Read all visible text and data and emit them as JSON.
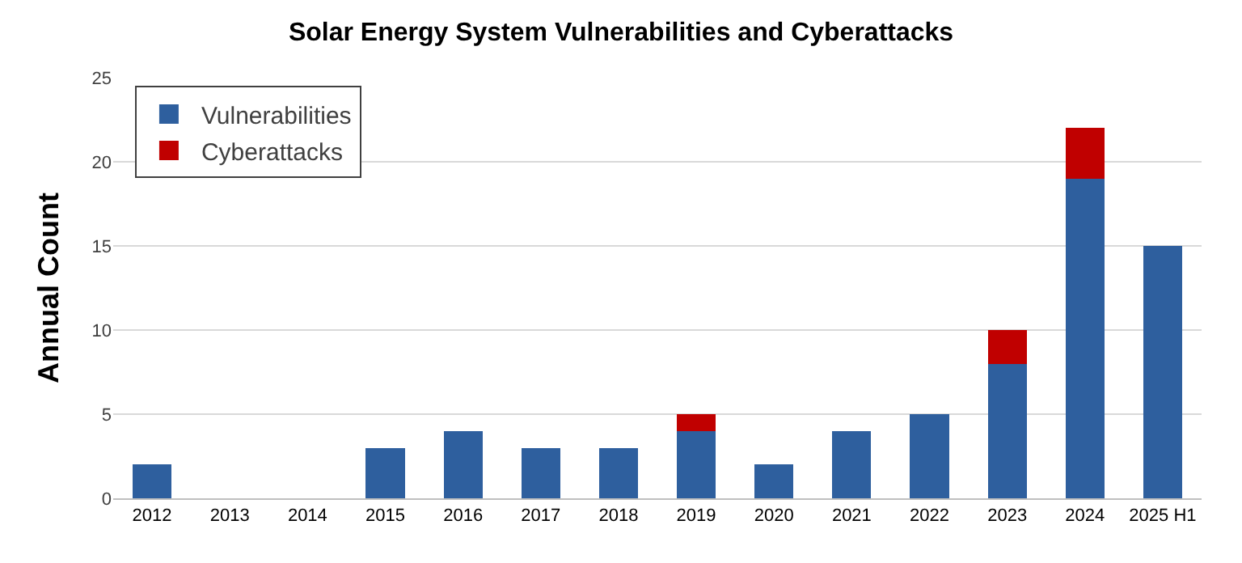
{
  "chart_data": {
    "type": "bar",
    "title": "Solar Energy System Vulnerabilities and Cyberattacks",
    "ylabel": "Annual Count",
    "categories": [
      "2012",
      "2013",
      "2014",
      "2015",
      "2016",
      "2017",
      "2018",
      "2019",
      "2020",
      "2021",
      "2022",
      "2023",
      "2024",
      "2025 H1"
    ],
    "series": [
      {
        "name": "Vulnerabilities",
        "color": "#2e5f9e",
        "values": [
          2,
          0,
          0,
          3,
          4,
          3,
          3,
          4,
          2,
          4,
          5,
          8,
          19,
          15
        ]
      },
      {
        "name": "Cyberattacks",
        "color": "#c00000",
        "values": [
          0,
          0,
          0,
          0,
          0,
          0,
          0,
          1,
          0,
          0,
          0,
          2,
          3,
          0
        ]
      }
    ],
    "stacked": true,
    "ylim": [
      0,
      25
    ],
    "yticks": [
      0,
      5,
      10,
      15,
      20,
      25
    ],
    "grid": "y",
    "legend": "top left"
  }
}
